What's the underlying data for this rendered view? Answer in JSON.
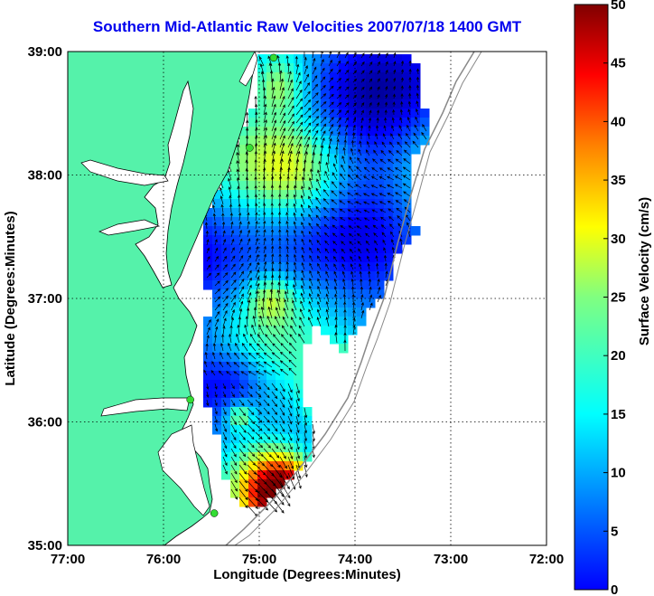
{
  "title": "Southern Mid-Atlantic Raw Velocities 2007/07/18 1400 GMT",
  "axes": {
    "xlabel": "Longitude (Degrees:Minutes)",
    "ylabel": "Latitude (Degrees:Minutes)",
    "x_ticks": [
      "77:00",
      "76:00",
      "75:00",
      "74:00",
      "73:00",
      "72:00"
    ],
    "y_ticks": [
      "39:00",
      "38:00",
      "37:00",
      "36:00",
      "35:00"
    ],
    "x_range": [
      -77,
      -72
    ],
    "y_range": [
      35,
      39
    ],
    "grid": "dotted"
  },
  "colorbar": {
    "label": "Surface Velocity (cm/s)",
    "ticks": [
      "0",
      "5",
      "10",
      "15",
      "20",
      "25",
      "30",
      "35",
      "40",
      "45",
      "50"
    ],
    "range": [
      0,
      50
    ],
    "colormap": "jet"
  },
  "colors": {
    "land": "#55f2aa",
    "water": "#ffffff",
    "title": "#0000ee",
    "station": "#33dd33"
  },
  "stations": [
    {
      "lon": -74.85,
      "lat": 38.95
    },
    {
      "lon": -75.1,
      "lat": 38.22
    },
    {
      "lon": -75.72,
      "lat": 36.18
    },
    {
      "lon": -75.47,
      "lat": 35.26
    }
  ]
}
